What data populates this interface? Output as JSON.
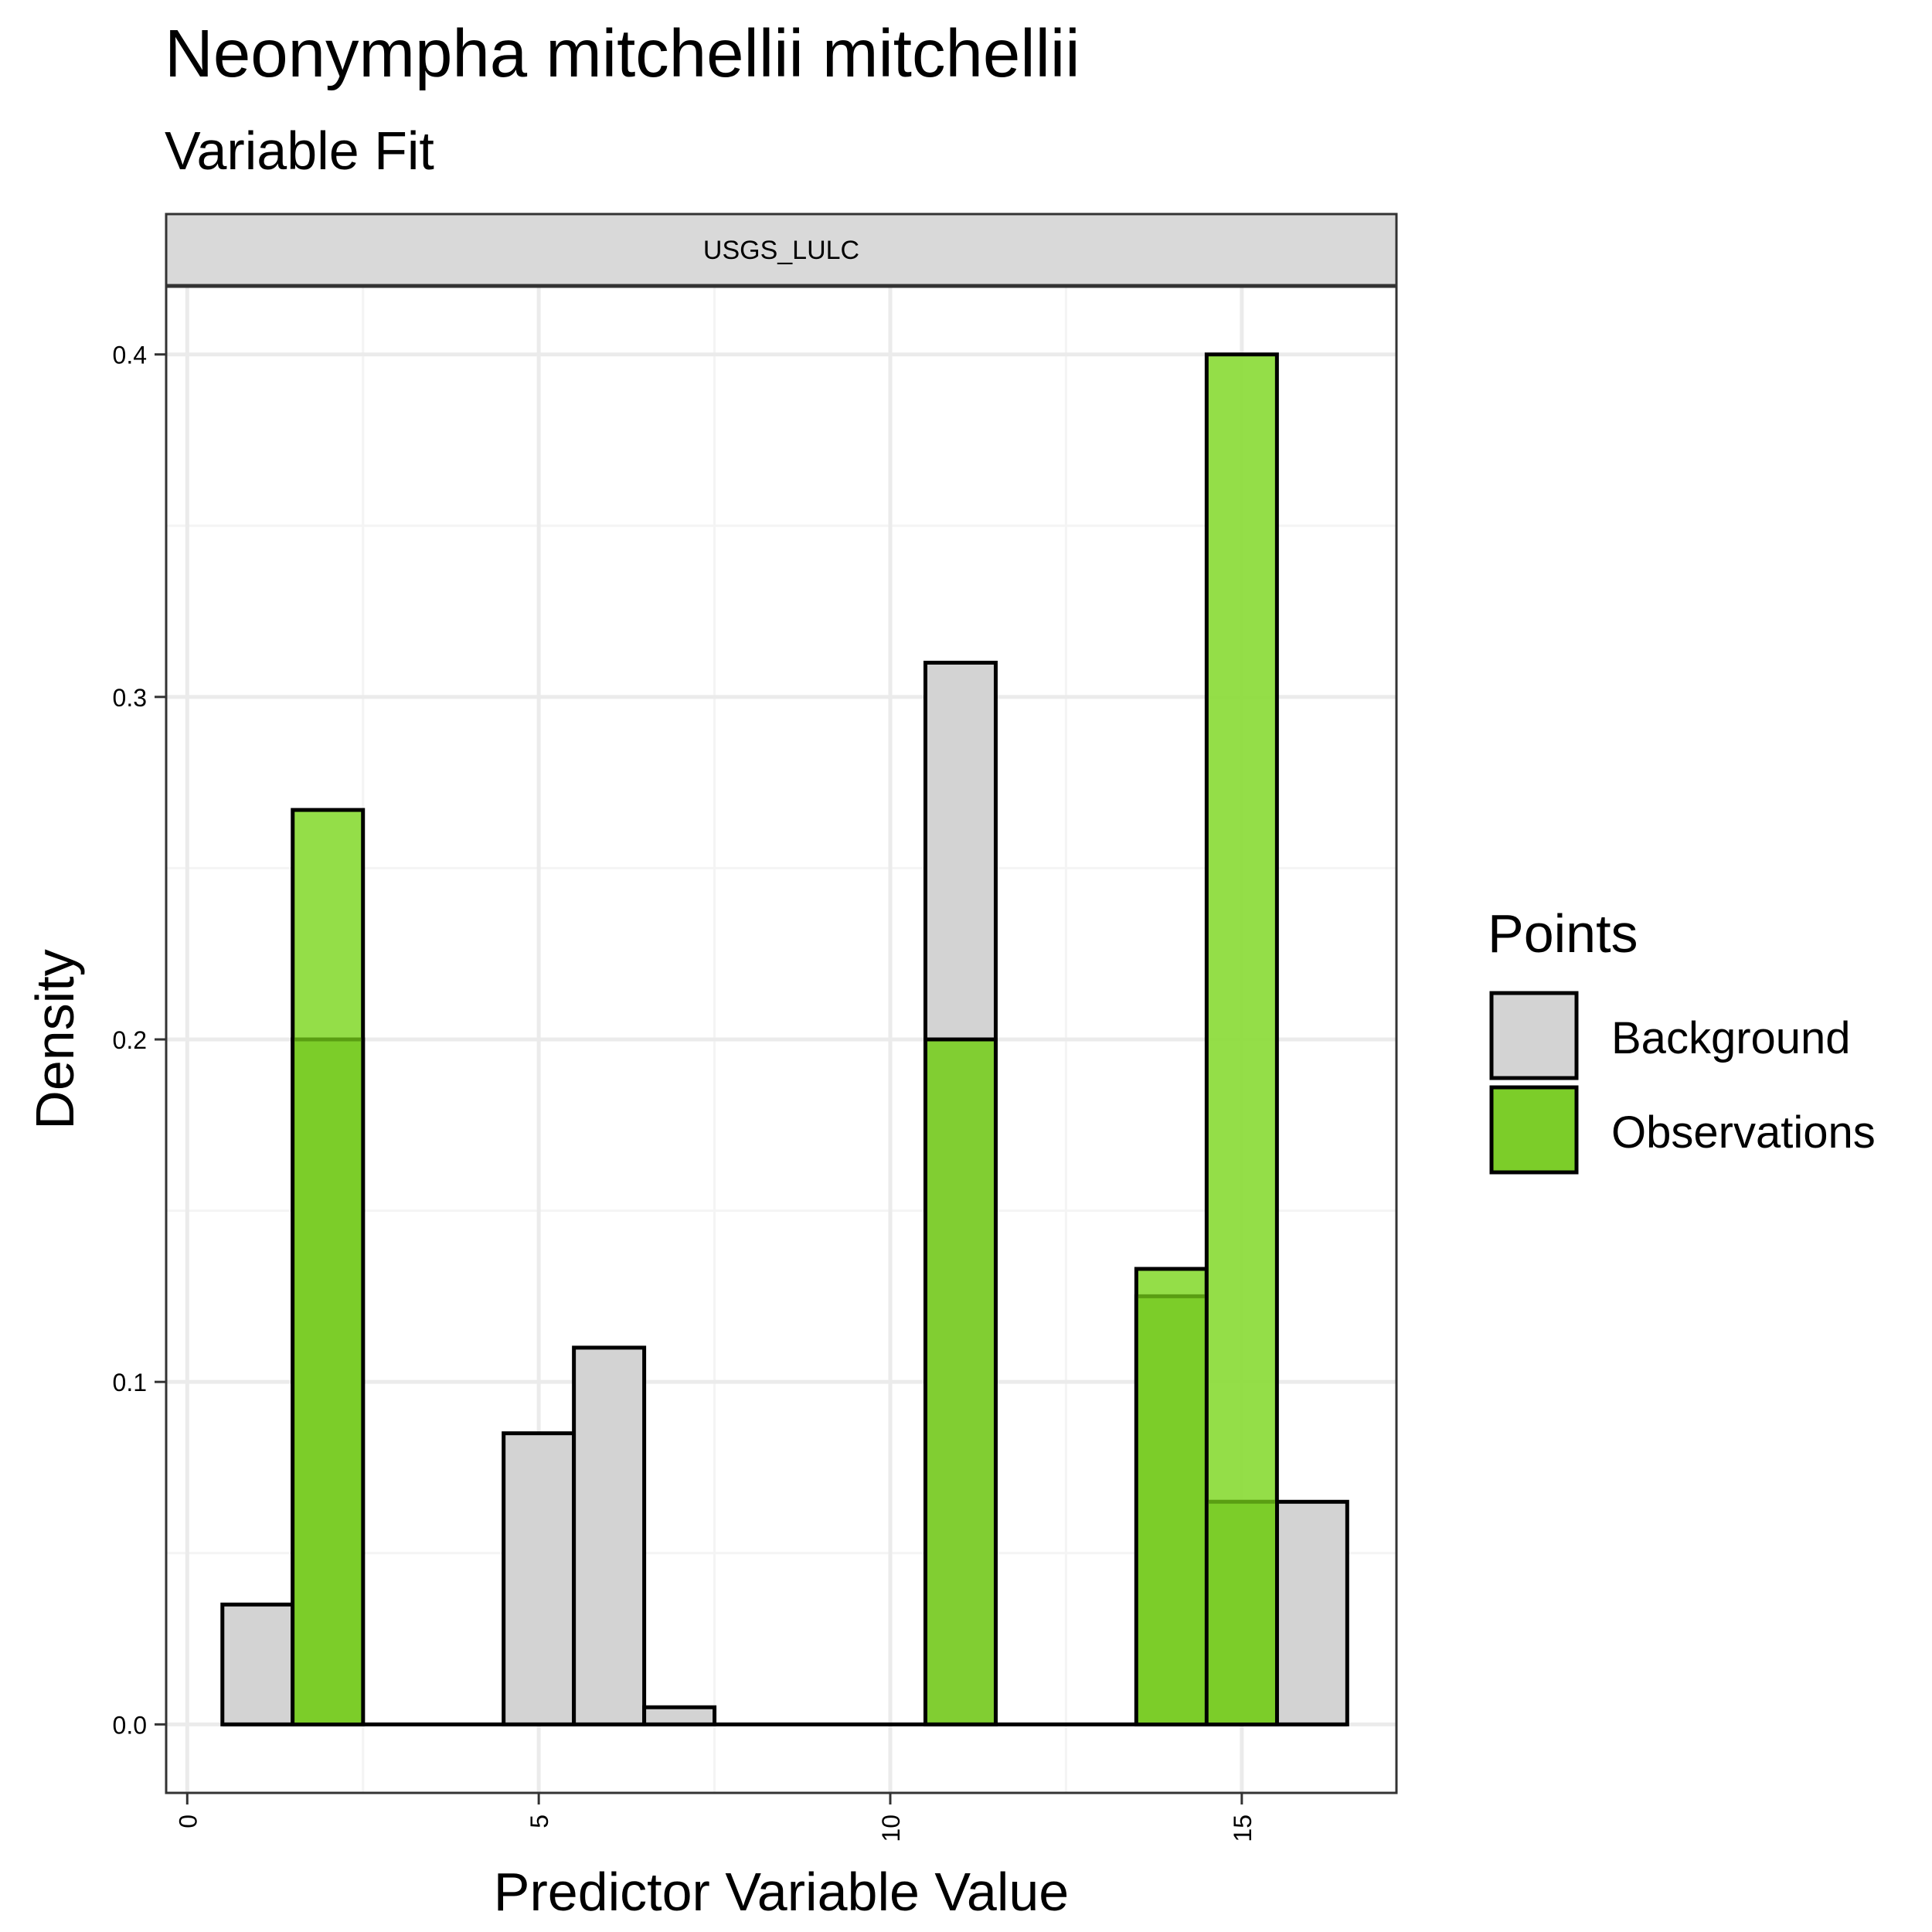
{
  "colors": {
    "background_fill": "#d3d3d3",
    "observations_fill": "#7ccd29",
    "observations_light_fill": "#8edc3e",
    "overlap_line": "#5a9e12",
    "bar_outline": "#000000",
    "strip_fill": "#d9d9d9",
    "grid_major": "#ebebeb",
    "grid_minor": "#f4f4f4",
    "panel_border": "#333333"
  },
  "chart_data": {
    "type": "bar",
    "title": "Neonympha mitchellii mitchellii",
    "subtitle": "Variable Fit",
    "facet_label": "USGS_LULC",
    "xlabel": "Predictor Variable Value",
    "ylabel": "Density",
    "xlim": [
      -0.3,
      17.2
    ],
    "ylim": [
      -0.02,
      0.42
    ],
    "x_ticks": [
      0,
      5,
      10,
      15
    ],
    "x_tick_labels": [
      "0",
      "5",
      "10",
      "15"
    ],
    "y_ticks": [
      0.0,
      0.1,
      0.2,
      0.3,
      0.4
    ],
    "y_tick_labels": [
      "0.0",
      "0.1",
      "0.2",
      "0.3",
      "0.4"
    ],
    "grid": true,
    "bin_width": 1,
    "legend": {
      "title": "Points",
      "position": "right",
      "entries": [
        "Background",
        "Observations"
      ]
    },
    "series": [
      {
        "name": "Background",
        "x": [
          1,
          2,
          3,
          4,
          5,
          6,
          7,
          8,
          9,
          10,
          11,
          12,
          13,
          14,
          15,
          16
        ],
        "values": [
          0.035,
          0.2,
          0,
          0,
          0.085,
          0.11,
          0.005,
          0,
          0,
          0,
          0.31,
          0,
          0,
          0.125,
          0.065,
          0.065
        ]
      },
      {
        "name": "Observations",
        "x": [
          1,
          2,
          3,
          4,
          5,
          6,
          7,
          8,
          9,
          10,
          11,
          12,
          13,
          14,
          15,
          16
        ],
        "values": [
          0,
          0.267,
          0,
          0,
          0,
          0,
          0,
          0,
          0,
          0,
          0.2,
          0,
          0,
          0.133,
          0.4,
          0
        ]
      }
    ]
  }
}
